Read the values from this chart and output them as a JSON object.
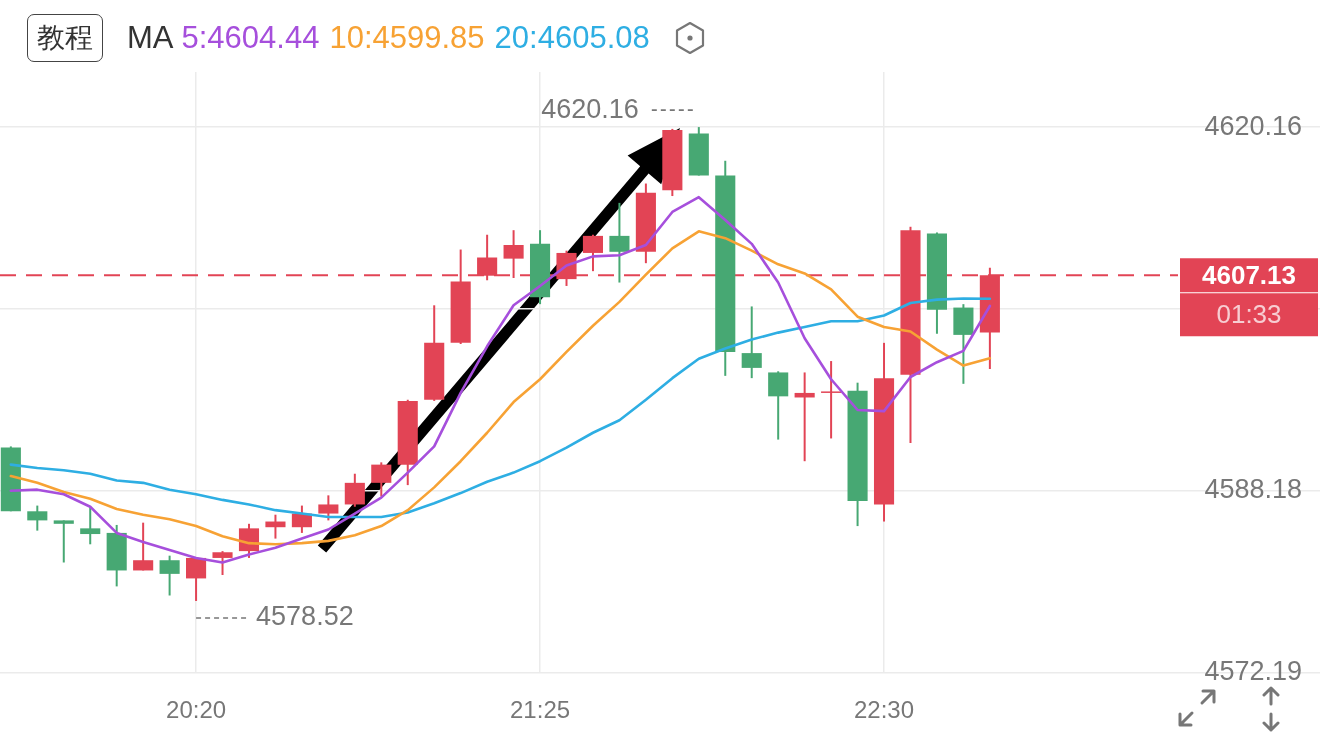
{
  "chart_data": {
    "type": "candlestick",
    "categories": [
      null,
      null,
      null,
      null,
      null,
      null,
      null,
      "20:20",
      null,
      null,
      null,
      null,
      null,
      null,
      null,
      null,
      null,
      null,
      null,
      null,
      "21:25",
      null,
      null,
      null,
      null,
      null,
      null,
      null,
      null,
      null,
      null,
      null,
      null,
      "22:30",
      null,
      null,
      null,
      null
    ],
    "ohlc": [
      [
        4592.0,
        4592.1,
        4586.4,
        4586.4
      ],
      [
        4586.4,
        4586.9,
        4584.7,
        4585.6
      ],
      [
        4585.6,
        4585.6,
        4581.9,
        4585.3
      ],
      [
        4584.9,
        4586.8,
        4583.5,
        4584.4
      ],
      [
        4584.5,
        4585.2,
        4579.8,
        4581.2
      ],
      [
        4581.2,
        4585.4,
        4581.2,
        4582.1
      ],
      [
        4582.1,
        4582.5,
        4579.0,
        4580.9
      ],
      [
        4580.5,
        4582.3,
        4578.52,
        4582.3
      ],
      [
        4582.3,
        4582.9,
        4580.8,
        4582.8
      ],
      [
        4582.9,
        4585.3,
        4582.3,
        4584.9
      ],
      [
        4585.0,
        4586.1,
        4584.0,
        4585.5
      ],
      [
        4585.0,
        4586.9,
        4584.5,
        4586.2
      ],
      [
        4586.2,
        4587.8,
        4585.6,
        4587.0
      ],
      [
        4587.0,
        4589.7,
        4586.8,
        4588.9
      ],
      [
        4588.9,
        4590.7,
        4587.7,
        4590.5
      ],
      [
        4590.5,
        4596.2,
        4588.7,
        4596.1
      ],
      [
        4596.2,
        4604.5,
        4596.1,
        4601.2
      ],
      [
        4601.2,
        4609.4,
        4601.1,
        4606.6
      ],
      [
        4607.1,
        4610.7,
        4606.7,
        4608.7
      ],
      [
        4608.6,
        4611.1,
        4606.9,
        4609.8
      ],
      [
        4609.9,
        4611.1,
        4604.6,
        4605.2
      ],
      [
        4606.8,
        4609.3,
        4606.2,
        4609.1
      ],
      [
        4609.1,
        4610.7,
        4607.5,
        4610.6
      ],
      [
        4610.6,
        4613.5,
        4606.5,
        4609.2
      ],
      [
        4609.2,
        4615.2,
        4608.2,
        4614.4
      ],
      [
        4614.6,
        4620.0,
        4614.1,
        4619.9
      ],
      [
        4619.6,
        4620.16,
        4615.9,
        4615.9
      ],
      [
        4615.9,
        4617.2,
        4598.3,
        4600.4
      ],
      [
        4600.3,
        4604.4,
        4598.1,
        4599.0
      ],
      [
        4598.6,
        4598.7,
        4592.7,
        4596.5
      ],
      [
        4596.4,
        4598.6,
        4590.8,
        4596.8
      ],
      [
        4596.8,
        4599.6,
        4592.8,
        4596.9
      ],
      [
        4597.0,
        4597.7,
        4585.1,
        4587.3
      ],
      [
        4587.0,
        4601.2,
        4585.5,
        4598.1
      ],
      [
        4598.4,
        4611.4,
        4592.4,
        4611.1
      ],
      [
        4610.8,
        4610.9,
        4602.0,
        4604.1
      ],
      [
        4604.3,
        4604.6,
        4597.6,
        4601.9
      ],
      [
        4602.1,
        4607.8,
        4598.9,
        4607.13
      ]
    ],
    "colors": [
      "#47a873",
      "#47a873",
      "#47a873",
      "#47a873",
      "#47a873",
      "#e24455",
      "#47a873",
      "#e24455",
      "#e24455",
      "#e24455",
      "#e24455",
      "#e24455",
      "#e24455",
      "#e24455",
      "#e24455",
      "#e24455",
      "#e24455",
      "#e24455",
      "#e24455",
      "#e24455",
      "#47a873",
      "#e24455",
      "#e24455",
      "#47a873",
      "#e24455",
      "#e24455",
      "#47a873",
      "#47a873",
      "#47a873",
      "#47a873",
      "#e24455",
      "#e24455",
      "#47a873",
      "#e24455",
      "#e24455",
      "#47a873",
      "#47a873",
      "#e24455"
    ],
    "series": [
      {
        "name": "5:4604.44",
        "type": "line",
        "color": "#a64fdc",
        "values": [
          4588.2,
          4588.3,
          4587.9,
          4586.8,
          4584.5,
          4583.7,
          4583.0,
          4582.3,
          4581.9,
          4582.6,
          4583.2,
          4584.0,
          4584.8,
          4586.2,
          4587.6,
          4589.8,
          4592.1,
          4596.8,
          4600.9,
          4604.5,
          4606.2,
          4608.0,
          4608.8,
          4608.9,
          4609.8,
          4612.7,
          4614.0,
          4612.0,
          4609.9,
          4606.5,
          4601.6,
          4598.0,
          4595.3,
          4595.2,
          4598.2,
          4599.5,
          4600.5,
          4604.44
        ]
      },
      {
        "name": "10:4599.85",
        "type": "line",
        "color": "#f7a234",
        "values": [
          4589.5,
          4588.9,
          4588.1,
          4587.5,
          4586.6,
          4586.1,
          4585.7,
          4585.1,
          4584.2,
          4583.6,
          4583.5,
          4583.6,
          4583.8,
          4584.3,
          4585.1,
          4586.5,
          4588.5,
          4590.8,
          4593.3,
          4596.0,
          4598.0,
          4600.4,
          4602.7,
          4604.8,
          4607.2,
          4609.5,
          4611.0,
          4610.4,
          4609.3,
          4608.1,
          4607.3,
          4605.9,
          4603.5,
          4602.6,
          4602.2,
          4600.6,
          4599.2,
          4599.85
        ]
      },
      {
        "name": "20:4605.08",
        "type": "line",
        "color": "#2eaee3",
        "values": [
          4590.5,
          4590.2,
          4590.0,
          4589.7,
          4589.1,
          4588.9,
          4588.3,
          4587.9,
          4587.4,
          4587.0,
          4586.5,
          4586.2,
          4585.9,
          4585.9,
          4585.9,
          4586.3,
          4587.1,
          4588.0,
          4589.0,
          4589.8,
          4590.8,
          4592.0,
          4593.3,
          4594.4,
          4596.2,
          4598.1,
          4599.8,
          4600.7,
          4601.5,
          4602.1,
          4602.6,
          4603.1,
          4603.1,
          4603.6,
          4604.7,
          4605.0,
          4605.1,
          4605.08
        ]
      }
    ],
    "legend": "top left",
    "legend_title": "MA",
    "ylim": [
      4572.19,
      4625
    ],
    "yticks": [
      4572.19,
      4588.18,
      {
        "value": 4604.17,
        "label": null
      },
      4620.16
    ],
    "grid": true,
    "ref_lines": [
      {
        "axis": "y",
        "value": 4607.13,
        "color": "#e24455",
        "line_style": "dashed"
      }
    ],
    "annotations": [
      "教程",
      "4620.16",
      "4578.52",
      "4607.13",
      "01:33"
    ]
  }
}
